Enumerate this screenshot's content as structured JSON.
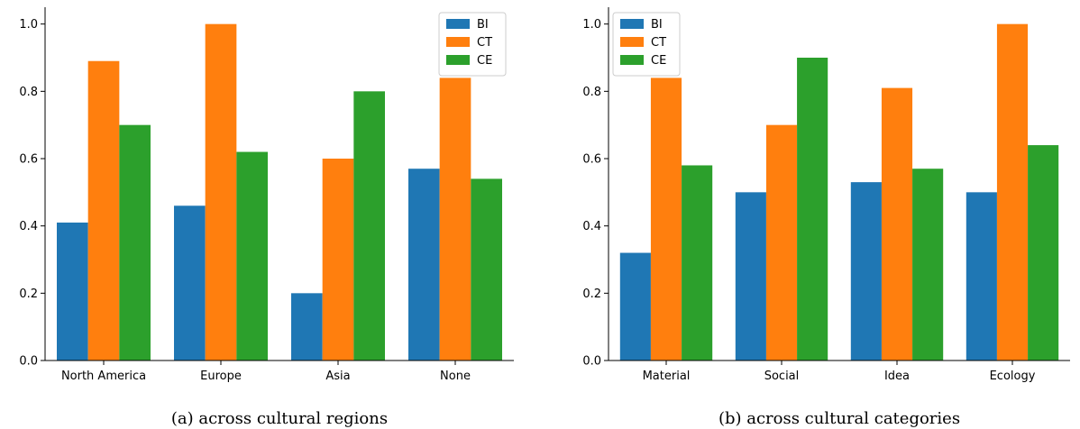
{
  "chart_data": [
    {
      "type": "bar",
      "caption": "(a) across cultural regions",
      "categories": [
        "North America",
        "Europe",
        "Asia",
        "None"
      ],
      "series": [
        {
          "name": "BI",
          "color": "#1f77b4",
          "values": [
            0.41,
            0.46,
            0.2,
            0.57
          ]
        },
        {
          "name": "CT",
          "color": "#ff7f0e",
          "values": [
            0.89,
            1.0,
            0.6,
            0.84
          ]
        },
        {
          "name": "CE",
          "color": "#2ca02c",
          "values": [
            0.7,
            0.62,
            0.8,
            0.54
          ]
        }
      ],
      "ylim": [
        0,
        1.05
      ],
      "yticks": [
        "0.0",
        "0.2",
        "0.4",
        "0.6",
        "0.8",
        "1.0"
      ],
      "ytick_values": [
        0,
        0.2,
        0.4,
        0.6,
        0.8,
        1.0
      ],
      "legend_position": "top-right",
      "grid": false
    },
    {
      "type": "bar",
      "caption": "(b) across cultural categories",
      "categories": [
        "Material",
        "Social",
        "Idea",
        "Ecology"
      ],
      "series": [
        {
          "name": "BI",
          "color": "#1f77b4",
          "values": [
            0.32,
            0.5,
            0.53,
            0.5
          ]
        },
        {
          "name": "CT",
          "color": "#ff7f0e",
          "values": [
            0.84,
            0.7,
            0.81,
            1.0
          ]
        },
        {
          "name": "CE",
          "color": "#2ca02c",
          "values": [
            0.58,
            0.9,
            0.57,
            0.64
          ]
        }
      ],
      "ylim": [
        0,
        1.05
      ],
      "yticks": [
        "0.0",
        "0.2",
        "0.4",
        "0.6",
        "0.8",
        "1.0"
      ],
      "ytick_values": [
        0,
        0.2,
        0.4,
        0.6,
        0.8,
        1.0
      ],
      "legend_position": "top-left",
      "grid": false
    }
  ]
}
